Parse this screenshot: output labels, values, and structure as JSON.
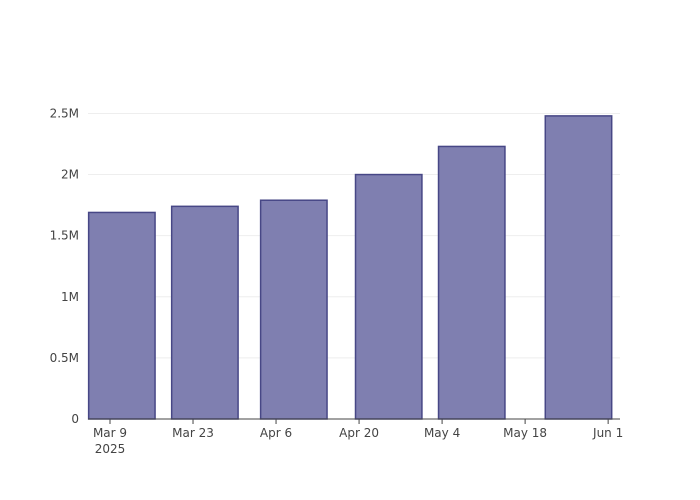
{
  "chart_data": {
    "type": "bar",
    "x": [
      "2025-03-11",
      "2025-03-25",
      "2025-04-09",
      "2025-04-25",
      "2025-05-09",
      "2025-05-27"
    ],
    "values": [
      1690000,
      1740000,
      1790000,
      2000000,
      2230000,
      2480000
    ],
    "color": "#7f7fb0",
    "edge_color": "#474786",
    "xlim": [
      "2025-03-05T07:00",
      "2025-06-03T00:00"
    ],
    "xticks": [
      {
        "value": "2025-03-09",
        "label": "Mar 9\n2025"
      },
      {
        "value": "2025-03-23",
        "label": "Mar 23"
      },
      {
        "value": "2025-04-06",
        "label": "Apr 6"
      },
      {
        "value": "2025-04-20",
        "label": "Apr 20"
      },
      {
        "value": "2025-05-04",
        "label": "May 4"
      },
      {
        "value": "2025-05-18",
        "label": "May 18"
      },
      {
        "value": "2025-06-01",
        "label": "Jun 1"
      }
    ],
    "ylim": [
      0,
      2610000
    ],
    "yticks": [
      0,
      {
        "value": 500000,
        "label": "0.5M"
      },
      {
        "value": 1000000,
        "label": "1M"
      },
      {
        "value": 1500000,
        "label": "1.5M"
      },
      {
        "value": 2000000,
        "label": "2M"
      },
      {
        "value": 2500000,
        "label": "2.5M"
      }
    ],
    "grid": true
  }
}
